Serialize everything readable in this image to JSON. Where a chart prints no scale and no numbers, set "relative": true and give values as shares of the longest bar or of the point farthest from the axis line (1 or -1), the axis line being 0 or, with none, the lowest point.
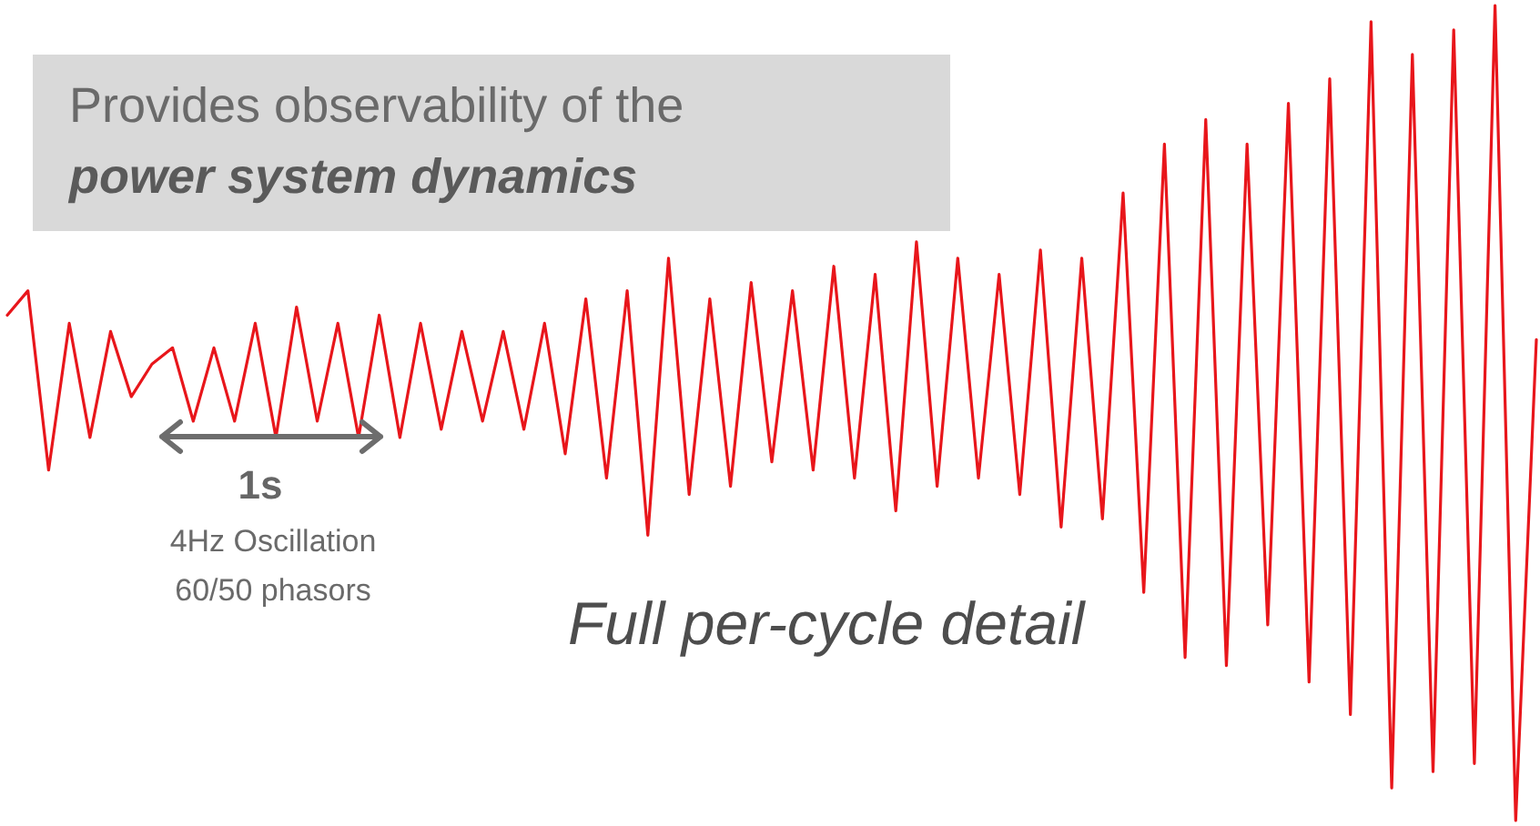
{
  "chart_data": {
    "type": "line",
    "title": "Provides observability of the",
    "subtitle": "power system dynamics",
    "annotations": [
      "1s",
      "4Hz Oscillation",
      "60/50 phasors",
      "Full per-cycle detail"
    ],
    "relative": true,
    "color": "#e8161b",
    "categories": [
      null,
      null,
      null,
      null,
      null,
      null,
      null,
      null,
      null,
      null,
      null,
      null,
      null,
      null,
      null,
      null,
      null,
      null,
      null,
      null,
      null,
      null,
      null,
      null,
      null,
      null,
      null,
      null,
      null,
      null,
      null,
      null,
      null,
      null,
      null,
      null,
      null,
      null,
      null,
      null,
      null,
      null,
      null,
      null,
      null,
      null,
      null,
      null,
      null,
      null,
      null,
      null,
      null,
      null,
      null,
      null,
      null,
      null,
      null,
      null,
      null,
      null,
      null,
      null,
      null,
      null,
      null,
      null,
      null,
      null,
      null,
      null,
      null,
      null,
      null
    ],
    "values": [
      0.62,
      0.65,
      0.43,
      0.61,
      0.47,
      0.6,
      0.52,
      0.56,
      0.58,
      0.49,
      0.58,
      0.49,
      0.61,
      0.47,
      0.63,
      0.49,
      0.61,
      0.47,
      0.62,
      0.47,
      0.61,
      0.48,
      0.6,
      0.49,
      0.6,
      0.48,
      0.61,
      0.45,
      0.64,
      0.42,
      0.65,
      0.35,
      0.69,
      0.4,
      0.64,
      0.41,
      0.66,
      0.44,
      0.65,
      0.43,
      0.68,
      0.42,
      0.67,
      0.38,
      0.71,
      0.41,
      0.69,
      0.42,
      0.67,
      0.4,
      0.7,
      0.36,
      0.69,
      0.37,
      0.77,
      0.28,
      0.83,
      0.2,
      0.86,
      0.19,
      0.83,
      0.24,
      0.88,
      0.17,
      0.91,
      0.13,
      0.98,
      0.04,
      0.94,
      0.06,
      0.97,
      0.07,
      1,
      0,
      0.59
    ]
  }
}
